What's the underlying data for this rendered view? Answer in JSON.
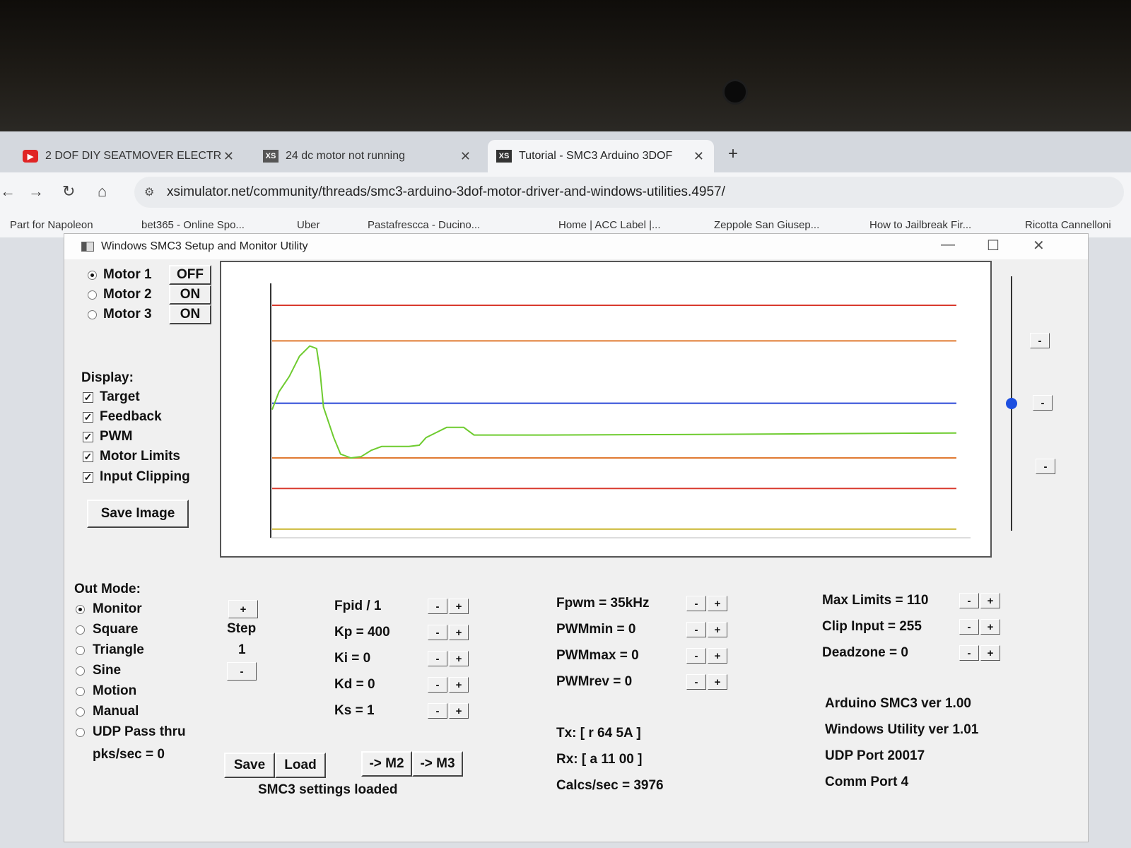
{
  "browser": {
    "tabs": [
      {
        "label": "2 DOF DIY SEATMOVER ELECTR",
        "icon": "youtube-icon"
      },
      {
        "label": "24 dc motor not running",
        "icon": "xs-icon"
      },
      {
        "label": "Tutorial - SMC3 Arduino 3DOF",
        "icon": "xs-icon"
      }
    ],
    "url": "xsimulator.net/community/threads/smc3-arduino-3dof-motor-driver-and-windows-utilities.4957/",
    "bookmarks": [
      "Part for Napoleon",
      "bet365 - Online Spo...",
      "Uber",
      "Pastafrescca - Ducino...",
      "Home | ACC Label |...",
      "Zeppole San Giusep...",
      "How to Jailbreak Fir...",
      "Ricotta Cannelloni"
    ]
  },
  "app": {
    "title": "Windows SMC3 Setup and Monitor Utility",
    "motors": [
      {
        "label": "Motor 1",
        "state": "OFF",
        "selected": true
      },
      {
        "label": "Motor 2",
        "state": "ON",
        "selected": false
      },
      {
        "label": "Motor 3",
        "state": "ON",
        "selected": false
      }
    ],
    "display_heading": "Display:",
    "display_options": [
      "Target",
      "Feedback",
      "PWM",
      "Motor Limits",
      "Input Clipping"
    ],
    "save_image": "Save Image",
    "out_mode_heading": "Out Mode:",
    "out_modes": [
      {
        "label": "Monitor",
        "selected": true
      },
      {
        "label": "Square",
        "selected": false
      },
      {
        "label": "Triangle",
        "selected": false
      },
      {
        "label": "Sine",
        "selected": false
      },
      {
        "label": "Motion",
        "selected": false
      },
      {
        "label": "Manual",
        "selected": false
      },
      {
        "label": "UDP Pass thru",
        "selected": false
      }
    ],
    "pks": "pks/sec = 0",
    "step": {
      "plus": "+",
      "label": "Step",
      "value": "1",
      "minus": "-"
    },
    "pid": [
      "Fpid / 1",
      "Kp = 400",
      "Ki = 0",
      "Kd = 0",
      "Ks = 1"
    ],
    "pwm": [
      "Fpwm = 35kHz",
      "PWMmin = 0",
      "PWMmax = 0",
      "PWMrev = 0"
    ],
    "limits": [
      "Max Limits = 110",
      "Clip Input = 255",
      "Deadzone = 0"
    ],
    "buttons": {
      "save": "Save",
      "load": "Load",
      "m2": "-> M2",
      "m3": "-> M3",
      "minus": "-",
      "plus": "+"
    },
    "status": "SMC3 settings loaded",
    "tx": "Tx: [ r 64 5A ]",
    "rx": "Rx: [ a 11 00 ]",
    "calcs": "Calcs/sec = 3976",
    "info": [
      "Arduino SMC3 ver 1.00",
      "Windows Utility ver 1.01",
      "UDP Port 20017",
      "Comm Port 4"
    ]
  },
  "chart_data": {
    "type": "line",
    "x_range": [
      0,
      1000
    ],
    "y_range": [
      0,
      1000
    ],
    "horizontal_lines": [
      {
        "name": "Motor Limits",
        "color": "#d93a2e",
        "y": [
          900,
          180
        ]
      },
      {
        "name": "Input Clipping",
        "color": "#e07a32",
        "y": [
          760,
          300
        ]
      },
      {
        "name": "Target",
        "color": "#2a47d6",
        "y": 515
      },
      {
        "name": "PWM",
        "color": "#c9b52c",
        "y": 20
      }
    ],
    "series": [
      {
        "name": "Feedback",
        "color": "#6ecb2f",
        "points": [
          [
            0,
            490
          ],
          [
            10,
            560
          ],
          [
            25,
            620
          ],
          [
            40,
            700
          ],
          [
            55,
            740
          ],
          [
            65,
            730
          ],
          [
            70,
            640
          ],
          [
            75,
            500
          ],
          [
            90,
            380
          ],
          [
            100,
            315
          ],
          [
            115,
            300
          ],
          [
            130,
            305
          ],
          [
            145,
            330
          ],
          [
            160,
            345
          ],
          [
            200,
            345
          ],
          [
            215,
            350
          ],
          [
            225,
            380
          ],
          [
            240,
            400
          ],
          [
            255,
            420
          ],
          [
            280,
            420
          ],
          [
            295,
            390
          ],
          [
            320,
            390
          ],
          [
            400,
            390
          ],
          [
            600,
            392
          ],
          [
            800,
            395
          ],
          [
            1000,
            398
          ]
        ]
      }
    ]
  }
}
